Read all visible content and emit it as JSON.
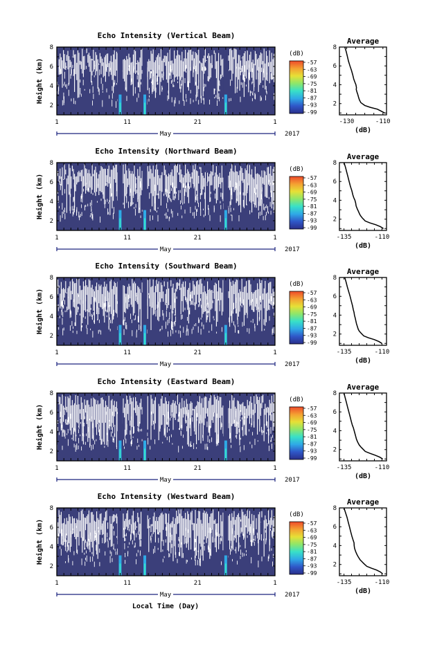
{
  "footer": {
    "xlabel": "Local Time (Day)"
  },
  "common": {
    "x_ticks": [
      "1",
      "11",
      "21",
      "1"
    ],
    "month": "May",
    "year": "2017",
    "ylabel": "Height (km)",
    "y_ticks": [
      "2",
      "4",
      "6",
      "8"
    ],
    "colorbar_unit": "(dB)",
    "colorbar_ticks": [
      "-57",
      "-63",
      "-69",
      "-75",
      "-81",
      "-87",
      "-93",
      "-99"
    ],
    "avg_title": "Average",
    "avg_xlabel": "(dB)",
    "avg_y_ticks": [
      "2",
      "4",
      "6",
      "8"
    ]
  },
  "colors": {
    "background_fill": "#3b3f7a",
    "colorbar": [
      "#2a2f8a",
      "#2f57c8",
      "#2fa9e6",
      "#38e0c8",
      "#8ee66a",
      "#e6e036",
      "#f4a032",
      "#ee4a2a"
    ]
  },
  "chart_data": [
    {
      "type": "heatmap",
      "title": "Echo Intensity (Vertical Beam)",
      "x_range_days": [
        1,
        32
      ],
      "y_range_km": [
        1,
        8
      ],
      "bright_streak_days": [
        10,
        13.5,
        25
      ],
      "avg_profile": {
        "type": "line",
        "title": "Average",
        "xlabel": "(dB)",
        "x_ticks": [
          "-130",
          "-110"
        ],
        "xlim": [
          -134,
          -108
        ],
        "ylim": [
          0.8,
          8
        ],
        "x": [
          -131,
          -130.2,
          -129.6,
          -129,
          -128.2,
          -127.3,
          -126.6,
          -126.1,
          -125.5,
          -124.9,
          -124.6,
          -124.7,
          -124.3,
          -123.9,
          -123.5,
          -123,
          -122.2,
          -120,
          -117,
          -113,
          -111,
          -109
        ],
        "y": [
          8,
          7.5,
          7,
          6.5,
          6,
          5.5,
          5,
          4.6,
          4.3,
          4,
          3.7,
          3.5,
          3.2,
          3,
          2.7,
          2.4,
          2.1,
          1.8,
          1.6,
          1.4,
          1.2,
          1
        ]
      }
    },
    {
      "type": "heatmap",
      "title": "Echo Intensity (Northward Beam)",
      "x_range_days": [
        1,
        32
      ],
      "y_range_km": [
        1,
        8
      ],
      "bright_streak_days": [
        10,
        13.5,
        25
      ],
      "avg_profile": {
        "type": "line",
        "title": "Average",
        "xlabel": "(dB)",
        "x_ticks": [
          "-135",
          "-110"
        ],
        "xlim": [
          -138,
          -107
        ],
        "ylim": [
          0.8,
          8
        ],
        "x": [
          -135,
          -134,
          -133.2,
          -132.4,
          -131.6,
          -130.8,
          -129.8,
          -129.2,
          -128.6,
          -127.8,
          -127.3,
          -127,
          -126.3,
          -125.4,
          -124.6,
          -123.8,
          -122.8,
          -121,
          -118,
          -114,
          -111,
          -109
        ],
        "y": [
          8,
          7.5,
          7,
          6.5,
          6,
          5.5,
          5,
          4.6,
          4.3,
          4,
          3.7,
          3.4,
          3.1,
          2.8,
          2.5,
          2.3,
          2.1,
          1.8,
          1.6,
          1.4,
          1.2,
          1
        ]
      }
    },
    {
      "type": "heatmap",
      "title": "Echo Intensity (Southward Beam)",
      "x_range_days": [
        1,
        32
      ],
      "y_range_km": [
        1,
        8
      ],
      "bright_streak_days": [
        10,
        13.5,
        25
      ],
      "avg_profile": {
        "type": "line",
        "title": "Average",
        "xlabel": "(dB)",
        "x_ticks": [
          "-135",
          "-110"
        ],
        "xlim": [
          -138,
          -107
        ],
        "ylim": [
          0.8,
          8
        ],
        "x": [
          -134.5,
          -133.6,
          -132.8,
          -131.9,
          -131,
          -130.2,
          -129.4,
          -128.9,
          -128.4,
          -128.1,
          -127.6,
          -127.2,
          -126.8,
          -126.2,
          -125.6,
          -124.9,
          -123.8,
          -122,
          -119,
          -115,
          -112,
          -110
        ],
        "y": [
          8,
          7.5,
          7,
          6.5,
          6,
          5.5,
          5,
          4.6,
          4.3,
          4,
          3.7,
          3.4,
          3.1,
          2.8,
          2.5,
          2.3,
          2.1,
          1.8,
          1.6,
          1.4,
          1.2,
          1
        ]
      }
    },
    {
      "type": "heatmap",
      "title": "Echo Intensity (Eastward Beam)",
      "x_range_days": [
        1,
        32
      ],
      "y_range_km": [
        1,
        8
      ],
      "bright_streak_days": [
        10,
        13.5,
        25
      ],
      "avg_profile": {
        "type": "line",
        "title": "Average",
        "xlabel": "(dB)",
        "x_ticks": [
          "-135",
          "-110"
        ],
        "xlim": [
          -138,
          -107
        ],
        "ylim": [
          0.8,
          8
        ],
        "x": [
          -135,
          -134.2,
          -133.4,
          -132.6,
          -131.8,
          -131,
          -130.2,
          -129.5,
          -128.8,
          -128.3,
          -127.8,
          -127.3,
          -126.8,
          -126,
          -125,
          -124,
          -122.8,
          -121,
          -118,
          -114.5,
          -111.5,
          -109.5
        ],
        "y": [
          8,
          7.5,
          7,
          6.5,
          6,
          5.5,
          5,
          4.6,
          4.3,
          4,
          3.7,
          3.4,
          3.1,
          2.8,
          2.5,
          2.3,
          2.1,
          1.8,
          1.6,
          1.4,
          1.2,
          1
        ]
      }
    },
    {
      "type": "heatmap",
      "title": "Echo Intensity (Westward Beam)",
      "x_range_days": [
        1,
        32
      ],
      "y_range_km": [
        1,
        8
      ],
      "bright_streak_days": [
        10,
        13.5,
        25
      ],
      "avg_profile": {
        "type": "line",
        "title": "Average",
        "xlabel": "(dB)",
        "x_ticks": [
          "-135",
          "-110"
        ],
        "xlim": [
          -138,
          -107
        ],
        "ylim": [
          0.8,
          8
        ],
        "x": [
          -135,
          -134,
          -133,
          -132.2,
          -131.4,
          -130.6,
          -129.8,
          -129,
          -128.4,
          -128.3,
          -128,
          -127.4,
          -126.6,
          -125.6,
          -124.4,
          -123.2,
          -122,
          -120,
          -117,
          -113.5,
          -111,
          -109.5
        ],
        "y": [
          8,
          7.5,
          7,
          6.5,
          6,
          5.5,
          5,
          4.6,
          4.3,
          4,
          3.7,
          3.4,
          3.1,
          2.8,
          2.5,
          2.3,
          2.1,
          1.8,
          1.6,
          1.4,
          1.2,
          1
        ]
      }
    }
  ]
}
